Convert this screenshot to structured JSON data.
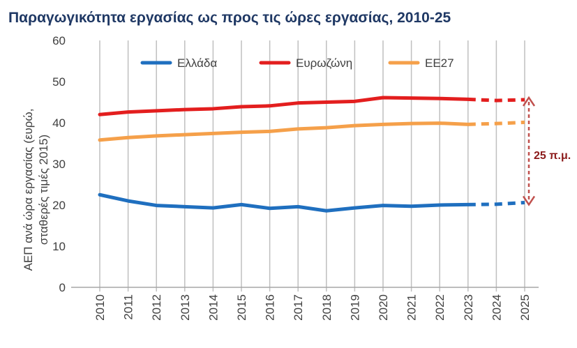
{
  "chart_data": {
    "type": "line",
    "title": "Παραγωγικότητα εργασίας ως προς τις ώρες εργασίας, 2010-25",
    "ylabel_line1": "ΑΕΠ ανά ώρα εργασίας (ευρώ,",
    "ylabel_line2": "σταθερές τιμές 2015)",
    "xlabel": "",
    "ylim": [
      0,
      60
    ],
    "yticks": [
      "0",
      "10",
      "20",
      "30",
      "40",
      "50",
      "60"
    ],
    "x": [
      "2010",
      "2011",
      "2012",
      "2013",
      "2014",
      "2015",
      "2016",
      "2017",
      "2018",
      "2019",
      "2020",
      "2021",
      "2022",
      "2023",
      "2024",
      "2025"
    ],
    "dashed_from": "2023",
    "grid": "vertical",
    "legend_position": "top",
    "series": [
      {
        "name": "Ελλάδα",
        "color": "#1f6fbf",
        "values": [
          22.5,
          21.0,
          19.9,
          19.6,
          19.3,
          20.1,
          19.2,
          19.6,
          18.6,
          19.3,
          19.9,
          19.7,
          20.0,
          20.1,
          20.2,
          20.6
        ]
      },
      {
        "name": "Ευρωζώνη",
        "color": "#e31e1e",
        "values": [
          42.0,
          42.6,
          42.9,
          43.2,
          43.4,
          43.9,
          44.1,
          44.8,
          45.0,
          45.2,
          46.1,
          46.0,
          45.9,
          45.7,
          45.4,
          45.6
        ]
      },
      {
        "name": "ΕΕ27",
        "color": "#f5a04a",
        "values": [
          35.8,
          36.4,
          36.8,
          37.1,
          37.4,
          37.7,
          37.9,
          38.5,
          38.8,
          39.3,
          39.6,
          39.8,
          39.9,
          39.6,
          39.8,
          40.1
        ]
      }
    ],
    "annotation": {
      "label": "25 π.μ.",
      "color": "#c0504d",
      "text_color": "#8b1a1a",
      "year": "2025",
      "from": 20.6,
      "to": 45.6
    }
  }
}
